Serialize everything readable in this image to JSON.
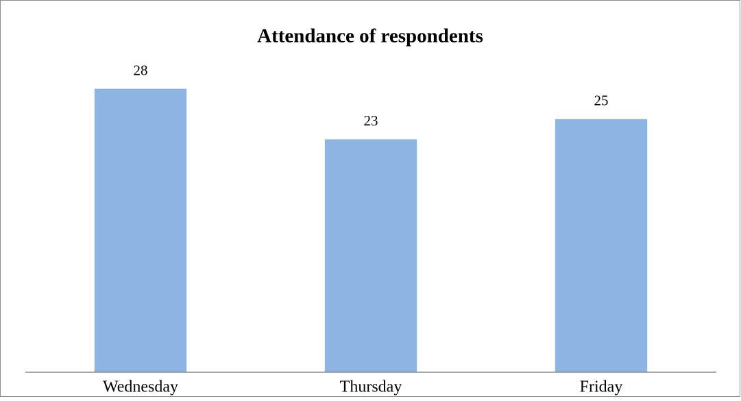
{
  "chart_data": {
    "type": "bar",
    "title": "Attendance of respondents",
    "categories": [
      "Wednesday",
      "Thursday",
      "Friday"
    ],
    "values": [
      28,
      23,
      25
    ],
    "color": "#8eb4e3",
    "ylim": [
      0,
      30
    ],
    "data_labels": true
  }
}
